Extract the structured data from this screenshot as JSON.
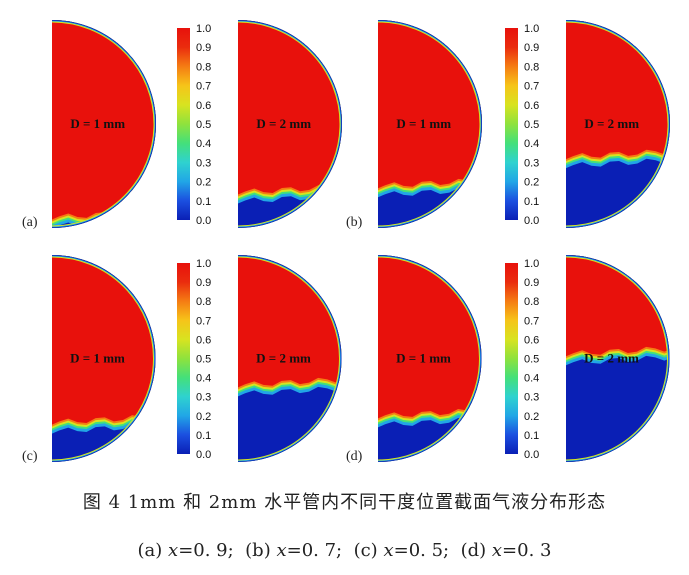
{
  "colorbar": {
    "ticks": [
      "1.0",
      "0.9",
      "0.8",
      "0.7",
      "0.6",
      "0.5",
      "0.4",
      "0.3",
      "0.2",
      "0.1",
      "0.0"
    ],
    "colors": [
      "#0a1fb5",
      "#1b4fe0",
      "#21a6e6",
      "#2fd2cf",
      "#44e07a",
      "#8fe23d",
      "#d8e320",
      "#f6c419",
      "#f57c13",
      "#ea2c0e",
      "#e8110c"
    ]
  },
  "panels": [
    {
      "letter": "(a)",
      "left_label": "D = 1 mm",
      "right_label": "D = 2 mm",
      "liquid_level_1mm": 0.92,
      "liquid_level_2mm": 0.8
    },
    {
      "letter": "(b)",
      "left_label": "D = 1 mm",
      "right_label": "D = 2 mm",
      "liquid_level_1mm": 0.77,
      "liquid_level_2mm": 0.63
    },
    {
      "letter": "(c)",
      "left_label": "D = 1 mm",
      "right_label": "D = 2 mm",
      "liquid_level_1mm": 0.78,
      "liquid_level_2mm": 0.6
    },
    {
      "letter": "(d)",
      "left_label": "D = 1 mm",
      "right_label": "D = 2 mm",
      "liquid_level_1mm": 0.75,
      "liquid_level_2mm": 0.45
    }
  ],
  "caption": {
    "line1": "图 4   1mm 和 2mm 水平管内不同干度位置截面气液分布形态",
    "line2_parts": [
      {
        "label": "(a)",
        "var": "x",
        "val": "=0. 9;"
      },
      {
        "label": "(b)",
        "var": "x",
        "val": "=0. 7;"
      },
      {
        "label": "(c)",
        "var": "x",
        "val": "=0. 5;"
      },
      {
        "label": "(d)",
        "var": "x",
        "val": "=0. 3"
      }
    ]
  }
}
